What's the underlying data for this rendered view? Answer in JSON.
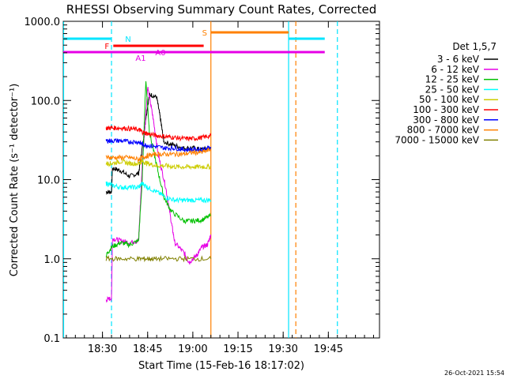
{
  "chart_data": {
    "type": "line",
    "title": "RHESSI Observing Summary Count Rates, Corrected",
    "xlabel": "Start Time (15-Feb-16 18:17:02)",
    "ylabel": "Corrected Count Rate (s⁻¹ detector⁻¹)",
    "yscale": "log",
    "ylim": [
      0.1,
      1000
    ],
    "xlim_minutes": [
      18.283,
      20.033
    ],
    "x_ticks": [
      {
        "label": "18:30",
        "t": 18.5
      },
      {
        "label": "18:45",
        "t": 18.75
      },
      {
        "label": "19:00",
        "t": 19.0
      },
      {
        "label": "19:15",
        "t": 19.25
      },
      {
        "label": "19:30",
        "t": 19.5
      },
      {
        "label": "19:45",
        "t": 19.75
      }
    ],
    "y_ticks": [
      {
        "label": "0.1",
        "v": 0.1
      },
      {
        "label": "1.0",
        "v": 1
      },
      {
        "label": "10.0",
        "v": 10
      },
      {
        "label": "100.0",
        "v": 100
      },
      {
        "label": "1000.0",
        "v": 1000
      }
    ],
    "legend_title": "Det 1,5,7",
    "legend_position": "right",
    "series": [
      {
        "name": "3 - 6 keV",
        "color": "#000000",
        "points": [
          [
            18.52,
            7
          ],
          [
            18.55,
            7
          ],
          [
            18.555,
            14
          ],
          [
            18.6,
            13
          ],
          [
            18.65,
            11
          ],
          [
            18.7,
            12
          ],
          [
            18.72,
            25
          ],
          [
            18.74,
            60
          ],
          [
            18.76,
            120
          ],
          [
            18.8,
            110
          ],
          [
            18.82,
            60
          ],
          [
            18.84,
            30
          ],
          [
            18.9,
            27
          ],
          [
            18.95,
            25
          ],
          [
            19.0,
            25
          ],
          [
            19.05,
            24
          ],
          [
            19.1,
            25
          ]
        ]
      },
      {
        "name": "6 - 12 keV",
        "color": "#e600e6",
        "points": [
          [
            18.52,
            0.3
          ],
          [
            18.55,
            0.32
          ],
          [
            18.555,
            1.8
          ],
          [
            18.6,
            1.7
          ],
          [
            18.65,
            1.6
          ],
          [
            18.7,
            1.7
          ],
          [
            18.72,
            15
          ],
          [
            18.75,
            150
          ],
          [
            18.78,
            60
          ],
          [
            18.81,
            20
          ],
          [
            18.85,
            8
          ],
          [
            18.88,
            3
          ],
          [
            18.9,
            1.6
          ],
          [
            18.95,
            1.2
          ],
          [
            18.98,
            0.9
          ],
          [
            19.02,
            1.1
          ],
          [
            19.05,
            1.4
          ],
          [
            19.08,
            1.5
          ],
          [
            19.1,
            2
          ]
        ]
      },
      {
        "name": "12 - 25 keV",
        "color": "#00c000",
        "points": [
          [
            18.52,
            1.1
          ],
          [
            18.55,
            1.4
          ],
          [
            18.6,
            1.6
          ],
          [
            18.65,
            1.5
          ],
          [
            18.7,
            1.7
          ],
          [
            18.72,
            10
          ],
          [
            18.74,
            180
          ],
          [
            18.76,
            40
          ],
          [
            18.8,
            15
          ],
          [
            18.84,
            6
          ],
          [
            18.88,
            4
          ],
          [
            18.95,
            3
          ],
          [
            19.0,
            3
          ],
          [
            19.05,
            3.1
          ],
          [
            19.1,
            3.5
          ]
        ]
      },
      {
        "name": "25 - 50 keV",
        "color": "#00ffff",
        "points": [
          [
            18.52,
            9
          ],
          [
            18.55,
            8.5
          ],
          [
            18.6,
            8
          ],
          [
            18.65,
            8
          ],
          [
            18.7,
            8
          ],
          [
            18.72,
            9
          ],
          [
            18.75,
            8
          ],
          [
            18.8,
            7
          ],
          [
            18.85,
            6
          ],
          [
            18.9,
            5.5
          ],
          [
            18.95,
            5.5
          ],
          [
            19.0,
            5.5
          ],
          [
            19.05,
            5.5
          ],
          [
            19.1,
            5.5
          ]
        ]
      },
      {
        "name": "50 - 100 keV",
        "color": "#cccc00",
        "points": [
          [
            18.52,
            16
          ],
          [
            18.55,
            16
          ],
          [
            18.6,
            17
          ],
          [
            18.65,
            16
          ],
          [
            18.7,
            16
          ],
          [
            18.72,
            17
          ],
          [
            18.75,
            16
          ],
          [
            18.8,
            15
          ],
          [
            18.85,
            15
          ],
          [
            18.9,
            14.5
          ],
          [
            18.95,
            14.5
          ],
          [
            19.0,
            14.5
          ],
          [
            19.05,
            14.5
          ],
          [
            19.1,
            14.5
          ]
        ]
      },
      {
        "name": "100 - 300 keV",
        "color": "#ff0000",
        "points": [
          [
            18.52,
            45
          ],
          [
            18.55,
            45
          ],
          [
            18.6,
            45
          ],
          [
            18.65,
            44
          ],
          [
            18.7,
            43
          ],
          [
            18.72,
            40
          ],
          [
            18.75,
            38
          ],
          [
            18.8,
            36
          ],
          [
            18.85,
            35
          ],
          [
            18.9,
            34
          ],
          [
            18.95,
            33
          ],
          [
            19.0,
            33
          ],
          [
            19.05,
            34
          ],
          [
            19.1,
            36
          ]
        ]
      },
      {
        "name": "300 - 800 keV",
        "color": "#0000ff",
        "points": [
          [
            18.52,
            31
          ],
          [
            18.55,
            31
          ],
          [
            18.6,
            31
          ],
          [
            18.65,
            30
          ],
          [
            18.7,
            30
          ],
          [
            18.72,
            28
          ],
          [
            18.75,
            27
          ],
          [
            18.8,
            26
          ],
          [
            18.85,
            25
          ],
          [
            18.9,
            25
          ],
          [
            18.95,
            24
          ],
          [
            19.0,
            24
          ],
          [
            19.05,
            24
          ],
          [
            19.1,
            26
          ]
        ]
      },
      {
        "name": "800 - 7000 keV",
        "color": "#ff8000",
        "points": [
          [
            18.52,
            19
          ],
          [
            18.55,
            19
          ],
          [
            18.6,
            19
          ],
          [
            18.65,
            19
          ],
          [
            18.7,
            18
          ],
          [
            18.72,
            19
          ],
          [
            18.75,
            20
          ],
          [
            18.8,
            21
          ],
          [
            18.85,
            21
          ],
          [
            18.9,
            21
          ],
          [
            18.95,
            21
          ],
          [
            19.0,
            22
          ],
          [
            19.05,
            22
          ],
          [
            19.1,
            24
          ]
        ]
      },
      {
        "name": "7000 - 15000 keV",
        "color": "#808000",
        "points": [
          [
            18.52,
            1
          ],
          [
            18.6,
            1
          ],
          [
            18.7,
            1
          ],
          [
            18.75,
            1
          ],
          [
            18.8,
            1
          ],
          [
            18.9,
            1
          ],
          [
            19.0,
            1
          ],
          [
            19.1,
            1
          ]
        ]
      }
    ],
    "flag_bars": [
      {
        "label": "N",
        "color": "#00e5ff",
        "segments": [
          [
            18.283,
            18.55
          ],
          [
            19.53,
            19.73
          ]
        ]
      },
      {
        "label": "S",
        "color": "#ff8000",
        "segments": [
          [
            19.1,
            19.53
          ]
        ]
      },
      {
        "label": "F",
        "color": "#ff0000",
        "segments": [
          [
            18.56,
            19.06
          ]
        ]
      },
      {
        "label": "",
        "color": "#e600e6",
        "segments": [
          [
            18.283,
            19.73
          ]
        ]
      },
      {
        "label": "A0",
        "color": "#e600e6",
        "segments": [
          [
            18.75,
            18.79
          ]
        ]
      },
      {
        "label": "A1",
        "color": "#e600e6",
        "segments": []
      }
    ],
    "vlines": [
      {
        "t": 18.285,
        "color": "#00e5ff",
        "style": "solid"
      },
      {
        "t": 18.55,
        "color": "#00e5ff",
        "style": "dashed"
      },
      {
        "t": 19.1,
        "color": "#ff8000",
        "style": "solid"
      },
      {
        "t": 19.53,
        "color": "#00e5ff",
        "style": "solid"
      },
      {
        "t": 19.57,
        "color": "#ff8000",
        "style": "dashed"
      },
      {
        "t": 19.8,
        "color": "#00e5ff",
        "style": "dashed"
      }
    ],
    "timestamp": "26-Oct-2021 15:54"
  }
}
